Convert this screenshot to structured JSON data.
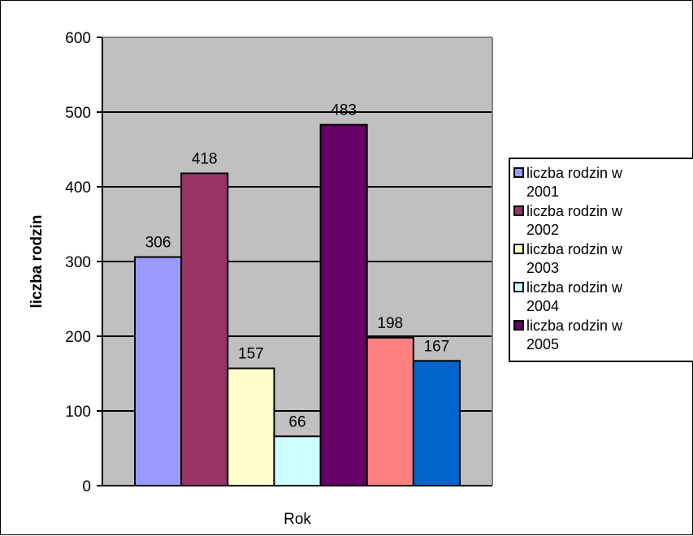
{
  "chart_data": {
    "type": "bar",
    "title": "",
    "xlabel": "Rok",
    "ylabel": "liczba rodzin",
    "ylim": [
      0,
      600
    ],
    "yticks": [
      0,
      100,
      200,
      300,
      400,
      500,
      600
    ],
    "grid": true,
    "legend_position": "right",
    "colors": {
      "plot_background": "#c0c0c0",
      "gridline": "#000000"
    },
    "bars": [
      {
        "value": 306,
        "color": "#9999ff"
      },
      {
        "value": 418,
        "color": "#993366"
      },
      {
        "value": 157,
        "color": "#ffffcc"
      },
      {
        "value": 66,
        "color": "#ccffff"
      },
      {
        "value": 483,
        "color": "#660066"
      },
      {
        "value": 198,
        "color": "#ff8080"
      },
      {
        "value": 167,
        "color": "#0066cc"
      }
    ],
    "legend": [
      {
        "line1": "liczba rodzin w",
        "line2": "2001",
        "color": "#9999ff"
      },
      {
        "line1": "liczba rodzin w",
        "line2": "2002",
        "color": "#993366"
      },
      {
        "line1": "liczba rodzin w",
        "line2": "2003",
        "color": "#ffffcc"
      },
      {
        "line1": "liczba rodzin w",
        "line2": "2004",
        "color": "#ccffff"
      },
      {
        "line1": "liczba rodzin w",
        "line2": "2005",
        "color": "#660066"
      }
    ]
  }
}
